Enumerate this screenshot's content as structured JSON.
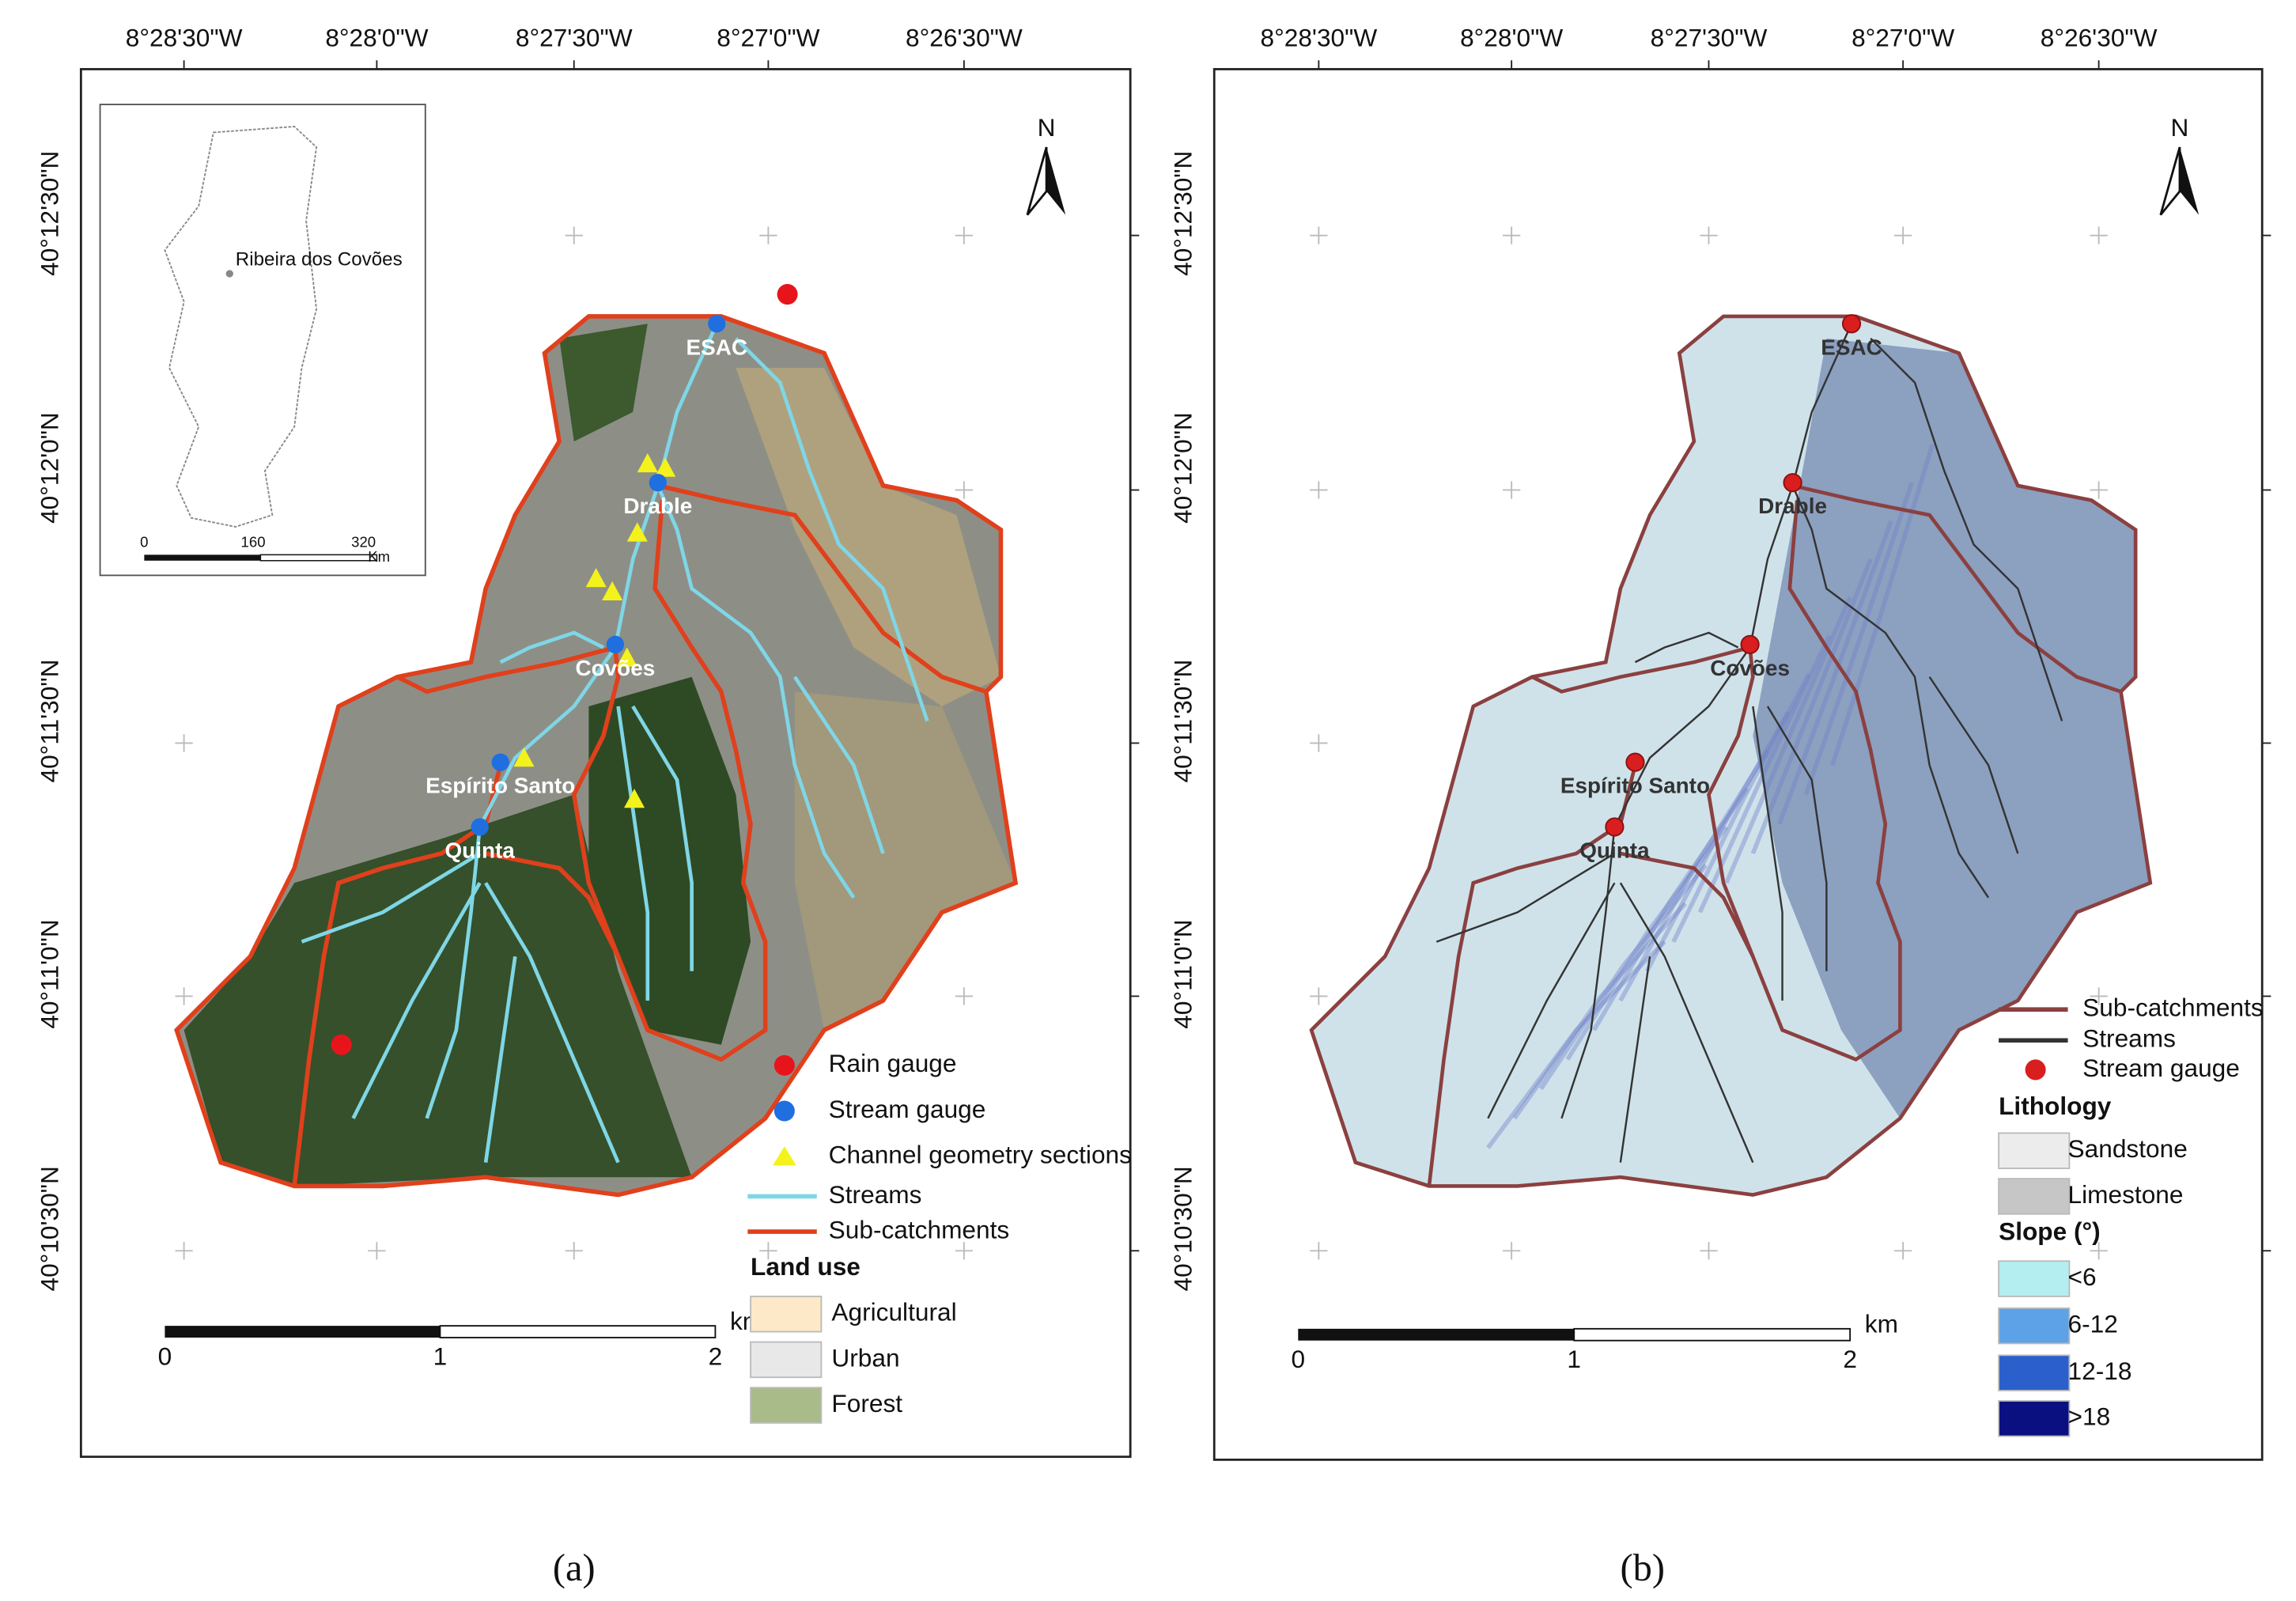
{
  "panels": [
    {
      "caption": "(a)",
      "x_labels": [
        "8°28'30\"W",
        "8°28'0\"W",
        "8°27'30\"W",
        "8°27'0\"W",
        "8°26'30\"W"
      ],
      "y_labels": [
        "40°12'30\"N",
        "40°12'0\"N",
        "40°11'30\"N",
        "40°11'0\"N",
        "40°10'30\"N"
      ],
      "north": "N",
      "inset": {
        "place": "Ribeira dos Covões",
        "scale": [
          "0",
          "160",
          "320"
        ],
        "unit": "Km"
      },
      "places": [
        "ESAC",
        "Drable",
        "Covões",
        "Espírito Santo",
        "Quinta"
      ],
      "scale_bar": {
        "ticks": [
          "0",
          "1",
          "2"
        ],
        "unit": "km"
      },
      "legend_groups": [
        {
          "items": [
            {
              "label": "Rain gauge",
              "symbol": "dot",
              "color": "#e8141c"
            },
            {
              "label": "Stream gauge",
              "symbol": "dot",
              "color": "#1f6fe0"
            },
            {
              "label": "Channel geometry sections",
              "symbol": "triangle",
              "color": "#f4f21c"
            },
            {
              "label": "Streams",
              "symbol": "line",
              "color": "#7fd6e6"
            },
            {
              "label": "Sub-catchments",
              "symbol": "line",
              "color": "#e0401c"
            }
          ]
        },
        {
          "title": "Land use",
          "items": [
            {
              "label": "Agricultural",
              "symbol": "box",
              "color": "#fde9c8"
            },
            {
              "label": "Urban",
              "symbol": "box",
              "color": "#e8e8e8"
            },
            {
              "label": "Forest",
              "symbol": "box",
              "color": "#a9bb88"
            }
          ]
        }
      ]
    },
    {
      "caption": "(b)",
      "x_labels": [
        "8°28'30\"W",
        "8°28'0\"W",
        "8°27'30\"W",
        "8°27'0\"W",
        "8°26'30\"W"
      ],
      "y_labels": [
        "40°12'30\"N",
        "40°12'0\"N",
        "40°11'30\"N",
        "40°11'0\"N",
        "40°10'30\"N"
      ],
      "north": "N",
      "places": [
        "ESAC",
        "Drable",
        "Covões",
        "Espírito Santo",
        "Quinta"
      ],
      "scale_bar": {
        "ticks": [
          "0",
          "1",
          "2"
        ],
        "unit": "km"
      },
      "legend_groups": [
        {
          "items": [
            {
              "label": "Sub-catchments",
              "symbol": "line",
              "color": "#8b4040"
            },
            {
              "label": "Streams",
              "symbol": "line",
              "color": "#333333"
            },
            {
              "label": "Stream gauge",
              "symbol": "dot",
              "color": "#d81e1e"
            }
          ]
        },
        {
          "title": "Lithology",
          "items": [
            {
              "label": "Sandstone",
              "symbol": "box",
              "color": "#ececec"
            },
            {
              "label": "Limestone",
              "symbol": "box",
              "color": "#c6c6c6"
            }
          ]
        },
        {
          "title": "Slope (°)",
          "items": [
            {
              "label": "<6",
              "symbol": "box",
              "color": "#b4eef0"
            },
            {
              "label": "6-12",
              "symbol": "box",
              "color": "#5da2e6"
            },
            {
              "label": "12-18",
              "symbol": "box",
              "color": "#2a5fcc"
            },
            {
              "label": ">18",
              "symbol": "box",
              "color": "#0a1080"
            }
          ]
        }
      ]
    }
  ]
}
